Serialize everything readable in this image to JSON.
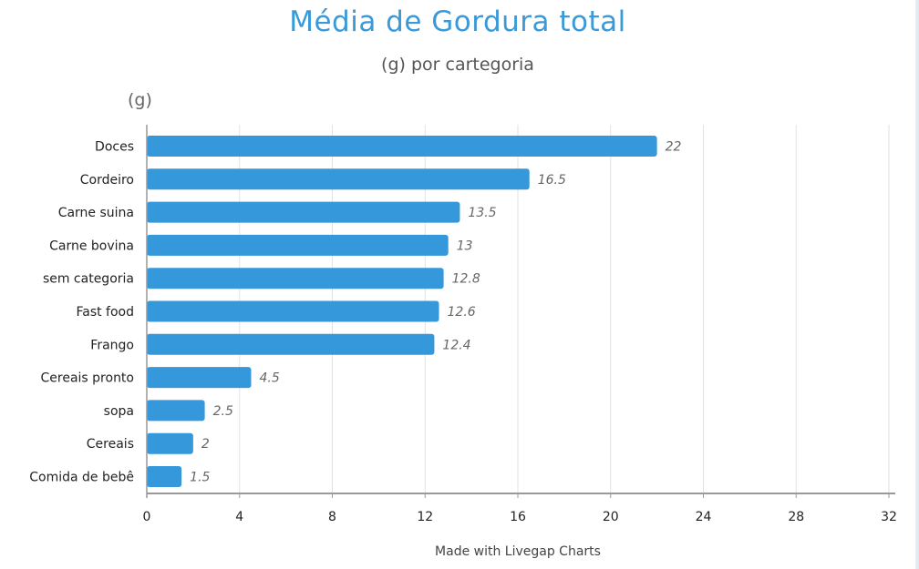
{
  "chart_data": {
    "type": "bar",
    "orientation": "horizontal",
    "title": "Média de Gordura total",
    "subtitle": "(g) por cartegoria",
    "ylabel": "(g)",
    "xlabel": "",
    "categories": [
      "Doces",
      "Cordeiro",
      "Carne suina",
      "Carne bovina",
      "sem categoria",
      "Fast food",
      "Frango",
      "Cereais pronto",
      "sopa",
      "Cereais",
      "Comida de bebê"
    ],
    "values": [
      22,
      16.5,
      13.5,
      13,
      12.8,
      12.6,
      12.4,
      4.5,
      2.5,
      2,
      1.5
    ],
    "value_labels": [
      "22",
      "16.5",
      "13.5",
      "13",
      "12.8",
      "12.6",
      "12.4",
      "4.5",
      "2.5",
      "2",
      "1.5"
    ],
    "xlim": [
      0,
      32
    ],
    "xticks": [
      "0",
      "4",
      "8",
      "12",
      "16",
      "20",
      "24",
      "28",
      "32"
    ],
    "grid": true,
    "bar_color": "#3498db",
    "credit": "Made with Livegap Charts"
  }
}
